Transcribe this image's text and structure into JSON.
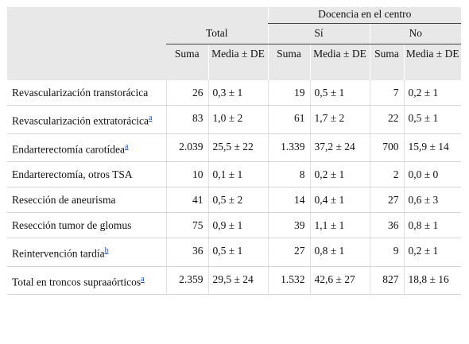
{
  "header": {
    "group_label": "Docencia en el centro",
    "total_label": "Total",
    "si_label": "Sí",
    "no_label": "No",
    "col_suma": "Suma",
    "col_media": "Media ± DE"
  },
  "rows": [
    {
      "label": "Revascularización transtorácica",
      "note": "",
      "total_suma": "26",
      "total_media": "0,3 ± 1",
      "si_suma": "19",
      "si_media": "0,5 ± 1",
      "no_suma": "7",
      "no_media": "0,2 ± 1"
    },
    {
      "label": "Revascularización extratorácica",
      "note": "a",
      "total_suma": "83",
      "total_media": "1,0 ± 2",
      "si_suma": "61",
      "si_media": "1,7 ± 2",
      "no_suma": "22",
      "no_media": "0,5 ± 1"
    },
    {
      "label": "Endarterectomía carotídea",
      "note": "a",
      "total_suma": "2.039",
      "total_media": "25,5 ± 22",
      "si_suma": "1.339",
      "si_media": "37,2 ± 24",
      "no_suma": "700",
      "no_media": "15,9 ± 14"
    },
    {
      "label": "Endarterectomía, otros TSA",
      "note": "",
      "total_suma": "10",
      "total_media": "0,1 ± 1",
      "si_suma": "8",
      "si_media": "0,2 ± 1",
      "no_suma": "2",
      "no_media": "0,0 ± 0"
    },
    {
      "label": "Resección de aneurisma",
      "note": "",
      "total_suma": "41",
      "total_media": "0,5 ± 2",
      "si_suma": "14",
      "si_media": "0,4 ± 1",
      "no_suma": "27",
      "no_media": "0,6 ± 3"
    },
    {
      "label": "Resección tumor de glomus",
      "note": "",
      "total_suma": "75",
      "total_media": "0,9 ± 1",
      "si_suma": "39",
      "si_media": "1,1 ± 1",
      "no_suma": "36",
      "no_media": "0,8 ± 1"
    },
    {
      "label": "Reintervención tardía",
      "note": "b",
      "total_suma": "36",
      "total_media": "0,5 ± 1",
      "si_suma": "27",
      "si_media": "0,8 ± 1",
      "no_suma": "9",
      "no_media": "0,2 ± 1"
    },
    {
      "label": "Total en troncos supraaórticos",
      "note": "a",
      "total_suma": "2.359",
      "total_media": "29,5 ± 24",
      "si_suma": "1.532",
      "si_media": "42,6 ± 27",
      "no_suma": "827",
      "no_media": "18,8 ± 16"
    }
  ]
}
